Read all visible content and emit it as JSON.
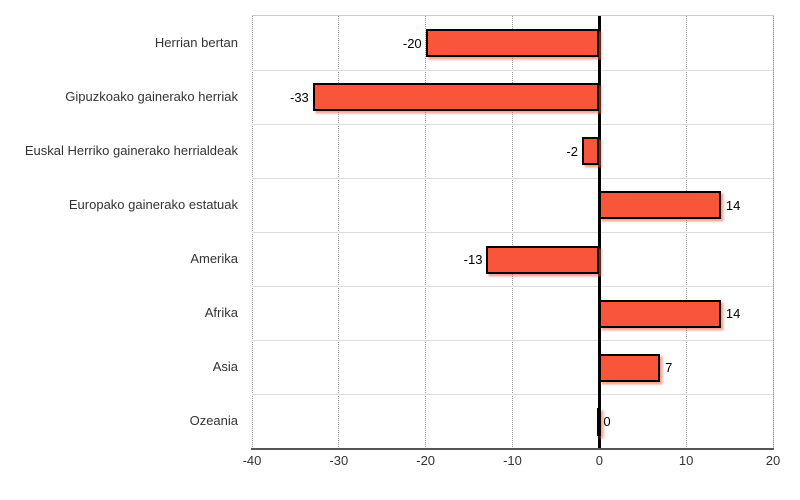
{
  "chart_data": {
    "type": "bar",
    "orientation": "horizontal",
    "title": "",
    "xlabel": "",
    "ylabel": "",
    "categories": [
      "Herrian bertan",
      "Gipuzkoako gainerako herriak",
      "Euskal Herriko gainerako herrialdeak",
      "Europako gainerako estatuak",
      "Amerika",
      "Afrika",
      "Asia",
      "Ozeania"
    ],
    "values": [
      -20,
      -33,
      -2,
      14,
      -13,
      14,
      7,
      0
    ],
    "value_labels": [
      "-20",
      "-33",
      "-2",
      "14",
      "-13",
      "14",
      "7",
      "0"
    ],
    "xlim": [
      -40,
      20
    ],
    "xticks": [
      -40,
      -30,
      -20,
      -10,
      0,
      10,
      20
    ],
    "xtick_labels": [
      "-40",
      "-30",
      "-20",
      "-10",
      "0",
      "10",
      "20"
    ],
    "grid": "vertical-dotted",
    "legend": "none",
    "colors": {
      "bar_fill": "#f8553b",
      "bar_border": "#000000",
      "bar_shadow": "rgba(248,85,59,0.55)",
      "zero_line": "#000000",
      "axis_line": "#555555",
      "gridline": "#999999",
      "row_separator": "#dddddd",
      "plot_border": "#cccccc",
      "category_text": "#333333",
      "value_text": "#000000"
    }
  }
}
